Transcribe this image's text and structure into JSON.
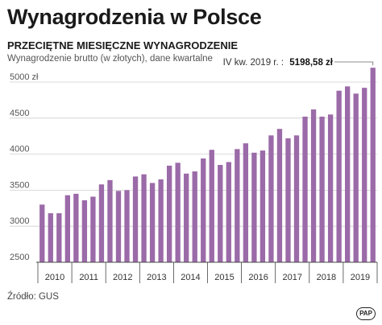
{
  "header": {
    "title": "Wynagrodzenia w Polsce",
    "subtitle": "PRZECIĘTNE MIESIĘCZNE WYNAGRODZENIE",
    "description": "Wynagrodzenie brutto (w złotych), dane kwartalne"
  },
  "footer": {
    "source": "Źródło: GUS",
    "logo": "PAP"
  },
  "annotation": {
    "prefix": "IV kw. 2019 r. :",
    "value": "5198,58 zł"
  },
  "colors": {
    "bar": "#9b6aa8",
    "grid": "#cfcfcf",
    "axis": "#444444"
  },
  "chart_data": {
    "type": "bar",
    "title": "Wynagrodzenia w Polsce",
    "subtitle": "PRZECIĘTNE MIESIĘCZNE WYNAGRODZENIE",
    "ylabel": "",
    "xlabel": "",
    "ylim": [
      2500,
      5200
    ],
    "y_ticks": [
      2500,
      3000,
      3500,
      4000,
      4500,
      5000
    ],
    "y_tick_labels": [
      "2500",
      "3000",
      "3500",
      "4000",
      "4500",
      "5000 zł"
    ],
    "x_groups": [
      "2010",
      "2011",
      "2012",
      "2013",
      "2014",
      "2015",
      "2016",
      "2017",
      "2018",
      "2019"
    ],
    "categories": [
      "I kw. 2010",
      "II kw. 2010",
      "III kw. 2010",
      "IV kw. 2010",
      "I kw. 2011",
      "II kw. 2011",
      "III kw. 2011",
      "IV kw. 2011",
      "I kw. 2012",
      "II kw. 2012",
      "III kw. 2012",
      "IV kw. 2012",
      "I kw. 2013",
      "II kw. 2013",
      "III kw. 2013",
      "IV kw. 2013",
      "I kw. 2014",
      "II kw. 2014",
      "III kw. 2014",
      "IV kw. 2014",
      "I kw. 2015",
      "II kw. 2015",
      "III kw. 2015",
      "IV kw. 2015",
      "I kw. 2016",
      "II kw. 2016",
      "III kw. 2016",
      "IV kw. 2016",
      "I kw. 2017",
      "II kw. 2017",
      "III kw. 2017",
      "IV kw. 2017",
      "I kw. 2018",
      "II kw. 2018",
      "III kw. 2018",
      "IV kw. 2018",
      "I kw. 2019",
      "II kw. 2019",
      "III kw. 2019",
      "IV kw. 2019"
    ],
    "values": [
      3300,
      3180,
      3180,
      3430,
      3450,
      3360,
      3410,
      3580,
      3640,
      3490,
      3500,
      3690,
      3720,
      3600,
      3650,
      3840,
      3880,
      3730,
      3760,
      3940,
      4060,
      3850,
      3890,
      4070,
      4150,
      4020,
      4050,
      4260,
      4350,
      4220,
      4260,
      4520,
      4620,
      4520,
      4550,
      4880,
      4940,
      4840,
      4920,
      5198.58
    ],
    "grid": true,
    "legend": "none"
  }
}
